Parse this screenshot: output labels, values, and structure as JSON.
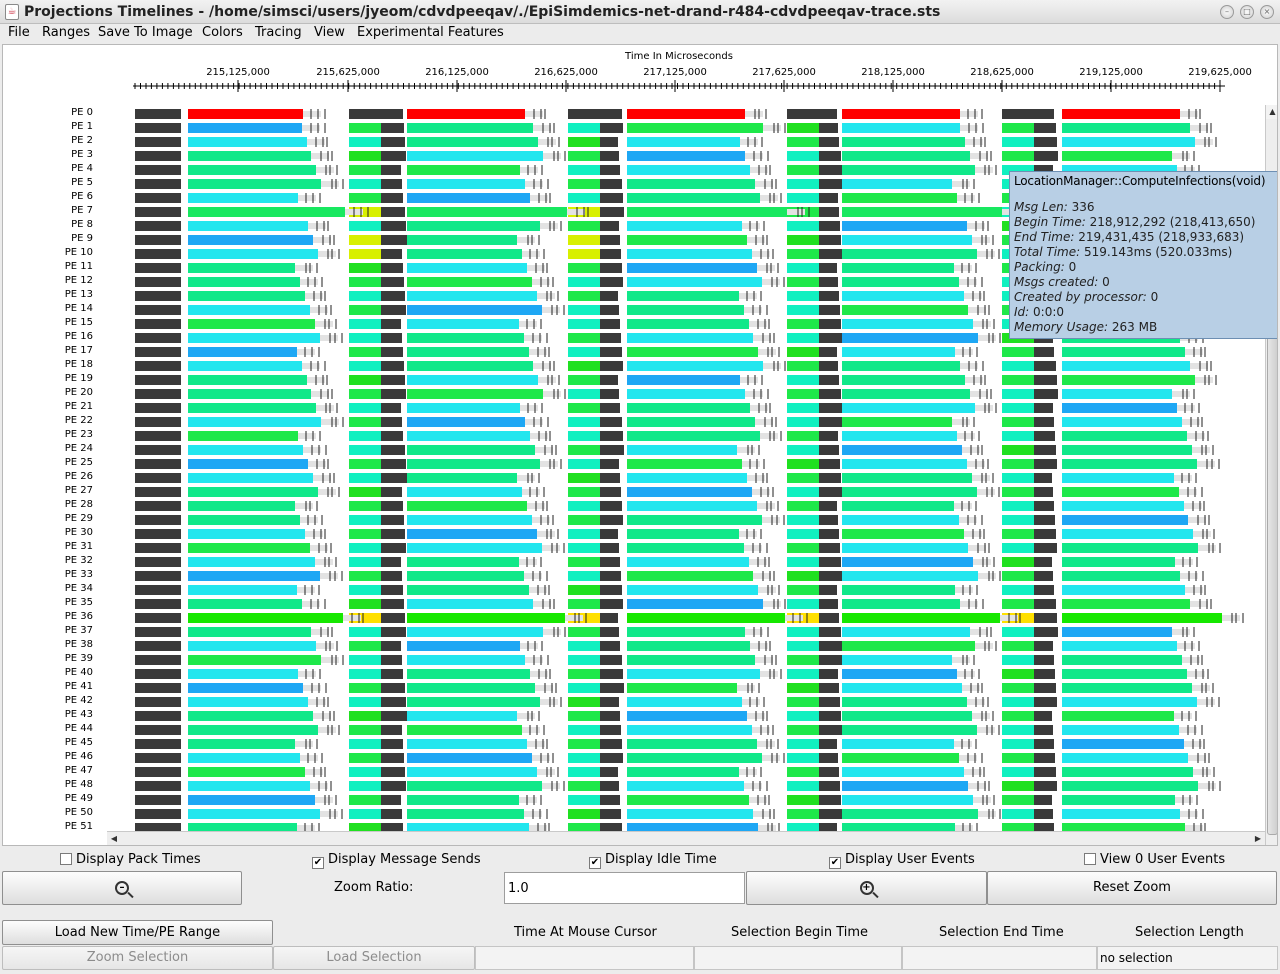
{
  "window": {
    "title": "Projections Timelines - /home/simsci/users/jyeom/cdvdpeeqav/./EpiSimdemics-net-drand-r484-cdvdpeeqav-trace.sts"
  },
  "menu": [
    "File",
    "Ranges",
    "Save To Image",
    "Colors",
    "Tracing",
    "View",
    "Experimental Features"
  ],
  "timeline": {
    "axis_title": "Time In Microseconds",
    "tick_labels": [
      "215,125,000",
      "215,625,000",
      "216,125,000",
      "216,625,000",
      "217,125,000",
      "217,625,000",
      "218,125,000",
      "218,625,000",
      "219,125,000",
      "219,625,000"
    ],
    "pe_labels": [
      "PE 0",
      "PE 1",
      "PE 2",
      "PE 3",
      "PE 4",
      "PE 5",
      "PE 6",
      "PE 7",
      "PE 8",
      "PE 9",
      "PE 10",
      "PE 11",
      "PE 12",
      "PE 13",
      "PE 14",
      "PE 15",
      "PE 16",
      "PE 17",
      "PE 18",
      "PE 19",
      "PE 20",
      "PE 21",
      "PE 22",
      "PE 23",
      "PE 24",
      "PE 25",
      "PE 26",
      "PE 27",
      "PE 28",
      "PE 29",
      "PE 30",
      "PE 31",
      "PE 32",
      "PE 33",
      "PE 34",
      "PE 35",
      "PE 36",
      "PE 37",
      "PE 38",
      "PE 39",
      "PE 40",
      "PE 41",
      "PE 42",
      "PE 43",
      "PE 44",
      "PE 45",
      "PE 46",
      "PE 47",
      "PE 48",
      "PE 49",
      "PE 50",
      "PE 51"
    ],
    "colors": {
      "idle": "#3a3a3a",
      "red": "#ff0000",
      "cyan": "#22e6ee",
      "azure": "#1ea7f4",
      "spring": "#10e889",
      "green": "#1ee84a",
      "lime": "#20e020",
      "yellow": "#d8f000",
      "teal": "#10f0c0",
      "gray_light": "#e3e3e3"
    }
  },
  "tooltip": {
    "title": "LocationManager::ComputeInfections(void)",
    "lines": [
      {
        "label": "Msg Len: ",
        "value": "336"
      },
      {
        "label": "Begin Time: ",
        "value": "218,912,292 (218,413,650)"
      },
      {
        "label": "End Time: ",
        "value": "219,431,435 (218,933,683)"
      },
      {
        "label": "Total Time: ",
        "value": "519.143ms (520.033ms)"
      },
      {
        "label": "Packing: ",
        "value": "0"
      },
      {
        "label": "Msgs created: ",
        "value": "0"
      },
      {
        "label": "Created by processor: ",
        "value": "0"
      },
      {
        "label": "Id: ",
        "value": "0:0:0"
      },
      {
        "label": "Memory Usage: ",
        "value": "263 MB"
      }
    ]
  },
  "options": {
    "pack_times": {
      "label": "Display Pack Times",
      "checked": false,
      "mark": ""
    },
    "message_sends": {
      "label": "Display Message Sends",
      "checked": true,
      "mark": "✔"
    },
    "idle_time": {
      "label": "Display Idle Time",
      "checked": true,
      "mark": "✔"
    },
    "user_events": {
      "label": "Display User Events",
      "checked": true,
      "mark": "✔"
    },
    "view_zero_user_events": {
      "label": "View 0 User Events",
      "checked": false,
      "mark": ""
    }
  },
  "zoom": {
    "ratio_label": "Zoom Ratio:",
    "ratio_value": "1.0",
    "zoom_out_icon": "zoom-out-icon",
    "zoom_in_icon": "zoom-in-icon",
    "reset_label": "Reset Zoom"
  },
  "bottom": {
    "load_range_label": "Load New Time/PE Range",
    "zoom_selection_label": "Zoom Selection",
    "load_selection_label": "Load Selection",
    "col_mouse": "Time At Mouse Cursor",
    "col_begin": "Selection Begin Time",
    "col_end": "Selection End Time",
    "col_length": "Selection Length",
    "mouse_value": "",
    "begin_value": "",
    "end_value": "",
    "length_value": "no selection"
  }
}
